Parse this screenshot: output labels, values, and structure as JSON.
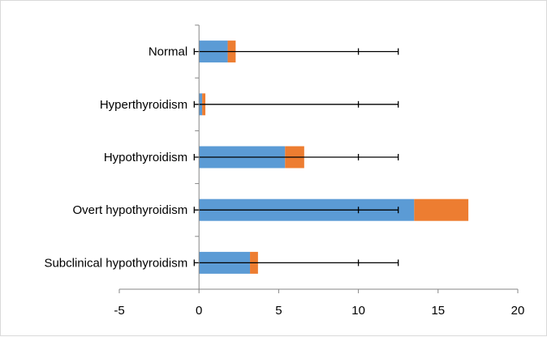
{
  "chart_data": {
    "type": "bar",
    "orientation": "horizontal",
    "stacked": true,
    "categories": [
      "Normal",
      "Hyperthyroidism",
      "Hypothyroidism",
      "Overt hypothyroidism",
      "Subclinical hypothyroidism"
    ],
    "series": [
      {
        "values": [
          1.8,
          0.2,
          5.4,
          13.5,
          3.2
        ],
        "color": "#5b9bd5"
      },
      {
        "values": [
          0.5,
          0.2,
          1.2,
          3.4,
          0.5
        ],
        "color": "#ed7d31"
      }
    ],
    "error_bar_markers": [
      -0.3,
      10.0,
      12.5
    ],
    "xlim": [
      -5,
      20
    ],
    "xticks": [
      "-5",
      "0",
      "5",
      "10",
      "15",
      "20"
    ],
    "grid": false,
    "legend": "none",
    "title": "",
    "xlabel": "",
    "ylabel": ""
  }
}
